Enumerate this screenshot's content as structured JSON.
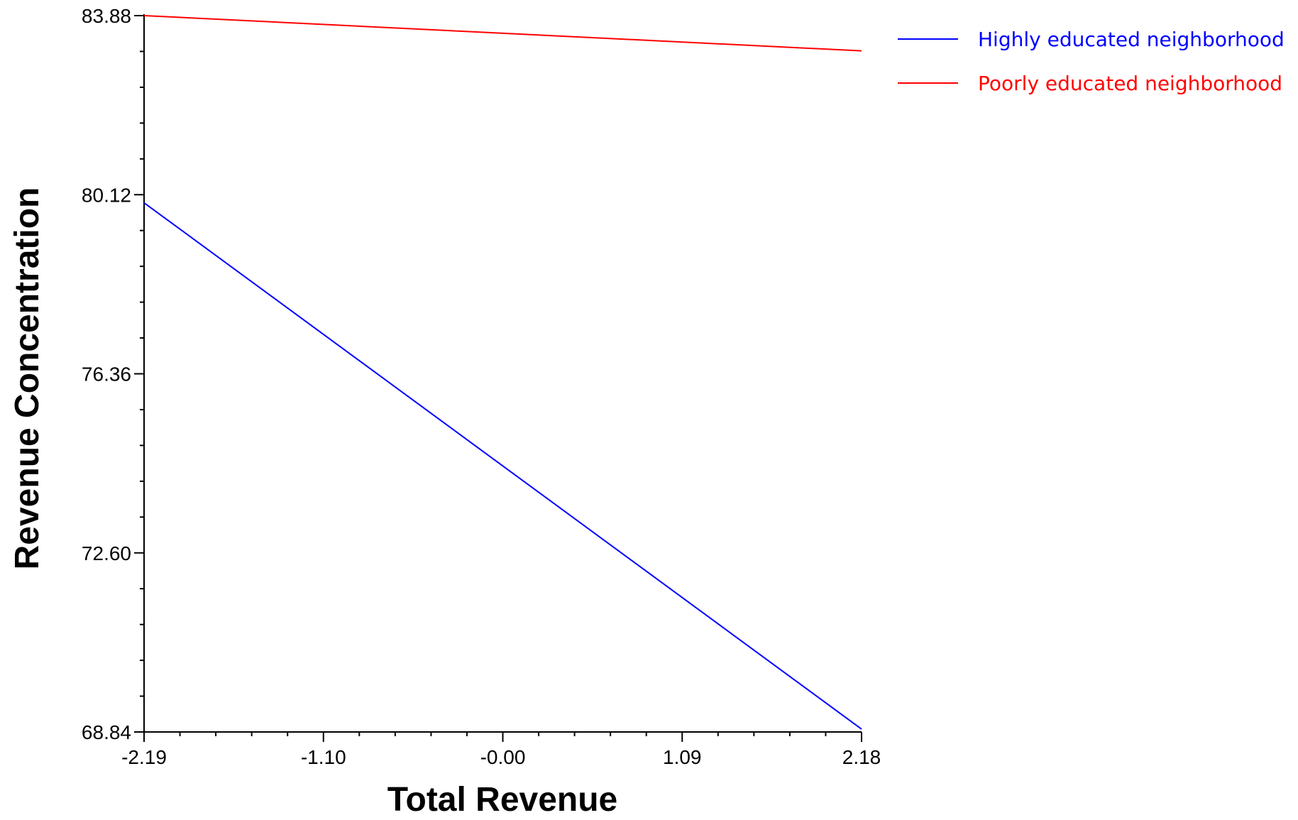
{
  "chart_data": {
    "type": "line",
    "title": "",
    "xlabel": "Total Revenue",
    "ylabel": "Revenue Concentration",
    "xlim": [
      -2.19,
      2.18
    ],
    "ylim": [
      68.84,
      83.88
    ],
    "x_ticks": [
      "-2.19",
      "-1.10",
      "-0.00",
      "1.09",
      "2.18"
    ],
    "y_ticks": [
      "68.84",
      "72.60",
      "76.36",
      "80.12",
      "83.88"
    ],
    "grid": false,
    "legend_position": "top-right",
    "series": [
      {
        "name": "Highly educated neighborhood",
        "color": "#0000ff",
        "x": [
          -2.19,
          2.18
        ],
        "y": [
          79.95,
          68.9
        ]
      },
      {
        "name": "Poorly educated neighborhood",
        "color": "#ff0000",
        "x": [
          -2.19,
          2.18
        ],
        "y": [
          83.88,
          83.14
        ]
      }
    ]
  }
}
